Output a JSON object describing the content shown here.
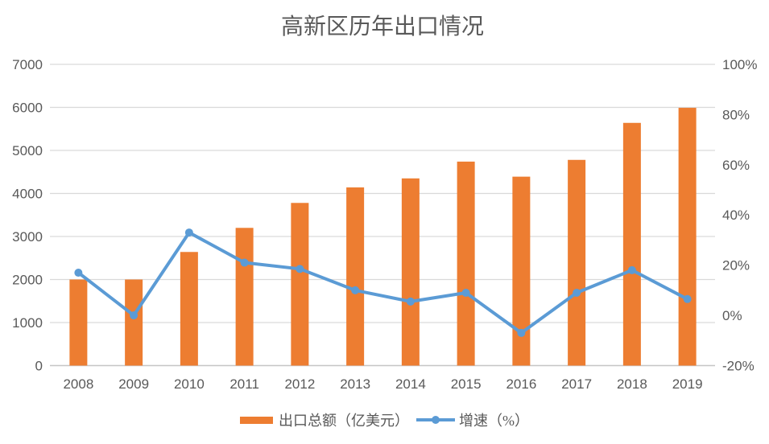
{
  "chart_data": {
    "type": "bar",
    "subtype": "combo-bar-line-dual-axis",
    "title": "高新区历年出口情况",
    "categories": [
      "2008",
      "2009",
      "2010",
      "2011",
      "2012",
      "2013",
      "2014",
      "2015",
      "2016",
      "2017",
      "2018",
      "2019"
    ],
    "series": [
      {
        "name": "出口总额（亿美元）",
        "type": "bar",
        "axis": "left",
        "color": "#ED7D31",
        "values": [
          2000,
          2000,
          2640,
          3200,
          3780,
          4140,
          4350,
          4740,
          4390,
          4780,
          5640,
          5990
        ]
      },
      {
        "name": "增速（%）",
        "type": "line",
        "axis": "right",
        "color": "#5B9BD5",
        "marker": "circle",
        "values": [
          17,
          0,
          33,
          21,
          18.5,
          10,
          5.5,
          9,
          -7,
          9,
          18,
          6.5
        ]
      }
    ],
    "left_axis": {
      "min": 0,
      "max": 7000,
      "step": 1000,
      "tick_labels": [
        "0",
        "1000",
        "2000",
        "3000",
        "4000",
        "5000",
        "6000",
        "7000"
      ]
    },
    "right_axis": {
      "min": -20,
      "max": 100,
      "step": 20,
      "tick_labels": [
        "-20%",
        "0%",
        "20%",
        "40%",
        "60%",
        "80%",
        "100%"
      ]
    },
    "grid": true,
    "legend": {
      "position": "bottom",
      "entries": [
        "出口总额（亿美元）",
        "增速（%）"
      ]
    },
    "colors": {
      "background": "#FFFFFF",
      "gridline": "#D9D9D9",
      "axis_line": "#C6C6C6",
      "tick_text": "#595959",
      "title_text": "#595959",
      "bar": "#ED7D31",
      "line": "#5B9BD5"
    }
  }
}
